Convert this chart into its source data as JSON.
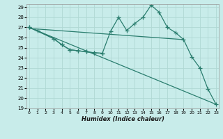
{
  "xlabel": "Humidex (Indice chaleur)",
  "bg_color": "#c8ecea",
  "grid_color": "#b0d8d4",
  "line_color": "#2a7d6e",
  "xlim": [
    0,
    23
  ],
  "ylim": [
    19,
    29
  ],
  "xticks": [
    0,
    1,
    2,
    3,
    4,
    5,
    6,
    7,
    8,
    9,
    10,
    11,
    12,
    13,
    14,
    15,
    16,
    17,
    18,
    19,
    20,
    21,
    22,
    23
  ],
  "yticks": [
    19,
    20,
    21,
    22,
    23,
    24,
    25,
    26,
    27,
    28,
    29
  ],
  "line1_x": [
    0,
    1,
    3,
    4,
    5,
    6,
    7,
    8,
    9
  ],
  "line1_y": [
    27.0,
    26.7,
    25.9,
    25.3,
    24.8,
    24.7,
    24.6,
    24.5,
    24.45
  ],
  "line2_x": [
    0,
    3,
    4,
    5,
    6,
    7,
    8,
    9,
    10,
    11,
    12,
    13,
    14,
    15,
    16,
    17,
    18,
    19,
    20,
    21,
    22,
    23
  ],
  "line2_y": [
    27.0,
    25.9,
    25.3,
    24.8,
    24.7,
    24.6,
    24.5,
    24.45,
    26.6,
    28.0,
    26.7,
    27.4,
    28.0,
    29.2,
    28.5,
    27.0,
    26.5,
    25.8,
    24.1,
    23.0,
    20.9,
    19.4
  ],
  "line3_x": [
    0,
    19
  ],
  "line3_y": [
    26.9,
    25.8
  ],
  "line4_x": [
    0,
    23
  ],
  "line4_y": [
    27.0,
    19.4
  ]
}
